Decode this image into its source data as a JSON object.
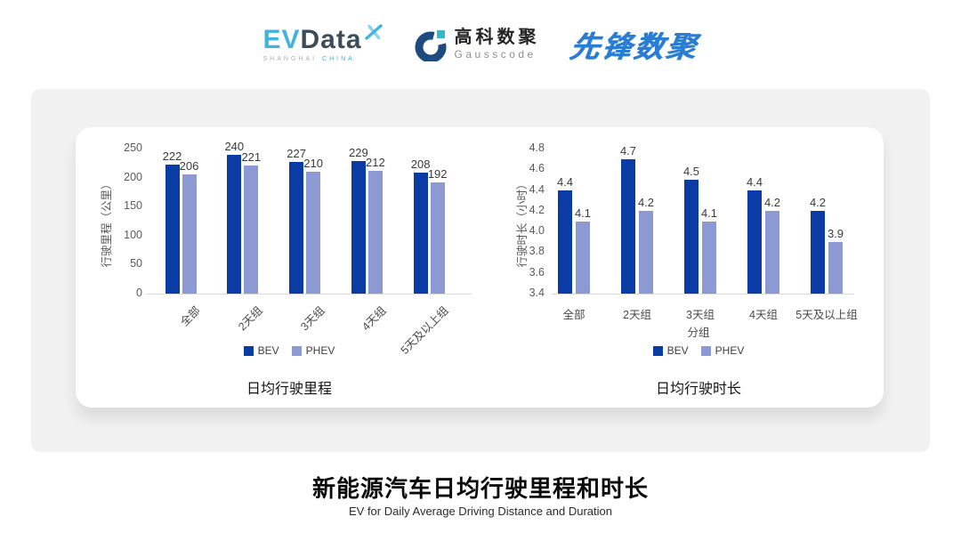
{
  "colors": {
    "bev": "#0b3ba5",
    "phev": "#8d99d2",
    "evdata_cyan": "#41b3e0",
    "evdata_dark": "#3d4c5a",
    "gauss_navy": "#1d4b80",
    "gauss_cyan": "#35b8cd",
    "pioneer_blue": "#2a7dd2",
    "card_gray": "#f1f1f1"
  },
  "header": {
    "evdata": {
      "word_ev": "EV",
      "word_data": "Data",
      "tagline_left": "SHANGHAI",
      "tagline_right": "CHINA",
      "mark_icon": "x-pinwheel"
    },
    "gausscode": {
      "name_cn": "高科数聚",
      "name_en": "Gausscode",
      "mark_icon": "g-ring"
    },
    "pioneer": {
      "wordmark": "先锋数聚"
    }
  },
  "chart_data": [
    {
      "type": "bar",
      "title": "日均行驶里程",
      "ylabel": "行驶里程（公里）",
      "xlabel": "",
      "categories": [
        "全部",
        "2天组",
        "3天组",
        "4天组",
        "5天及以上组"
      ],
      "series": [
        {
          "name": "BEV",
          "color": "#0b3ba5",
          "values": [
            222,
            240,
            227,
            229,
            208
          ]
        },
        {
          "name": "PHEV",
          "color": "#8d99d2",
          "values": [
            206,
            221,
            210,
            212,
            192
          ]
        }
      ],
      "ylim": [
        0,
        250
      ],
      "yticks": [
        "0",
        "50",
        "100",
        "150",
        "200",
        "250"
      ],
      "label_decimals": 0,
      "grid": false,
      "legend_position": "bottom",
      "category_rotation": -45
    },
    {
      "type": "bar",
      "title": "日均行驶时长",
      "ylabel": "行驶时长（小时）",
      "xlabel": "分组",
      "categories": [
        "全部",
        "2天组",
        "3天组",
        "4天组",
        "5天及以上组"
      ],
      "series": [
        {
          "name": "BEV",
          "color": "#0b3ba5",
          "values": [
            4.4,
            4.7,
            4.5,
            4.4,
            4.2
          ]
        },
        {
          "name": "PHEV",
          "color": "#8d99d2",
          "values": [
            4.1,
            4.2,
            4.1,
            4.2,
            3.9
          ]
        }
      ],
      "ylim": [
        3.4,
        4.8
      ],
      "yticks": [
        "3.4",
        "3.6",
        "3.8",
        "4.0",
        "4.2",
        "4.4",
        "4.6",
        "4.8"
      ],
      "label_decimals": 1,
      "grid": false,
      "legend_position": "bottom",
      "category_rotation": 0
    }
  ],
  "footer": {
    "title": "新能源汽车日均行驶里程和时长",
    "subtitle": "EV for Daily Average Driving Distance and Duration"
  }
}
